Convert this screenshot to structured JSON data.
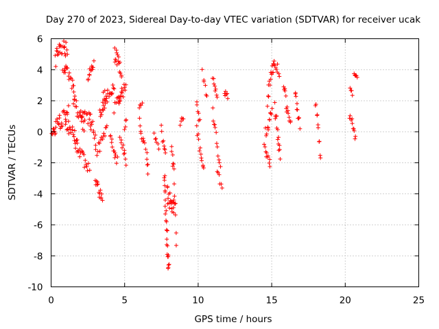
{
  "chart_data": {
    "type": "scatter",
    "title": "Day 270 of 2023, Sidereal Day-to-day VTEC variation (SDTVAR) for receiver ucak",
    "xlabel": "GPS time / hours",
    "ylabel": "SDTVAR / TECUs",
    "xlim": [
      0,
      25
    ],
    "ylim": [
      -10,
      6
    ],
    "xticks": [
      0,
      5,
      10,
      15,
      20,
      25
    ],
    "yticks": [
      -10,
      -8,
      -6,
      -4,
      -2,
      0,
      2,
      4,
      6
    ],
    "grid": true,
    "marker": "+",
    "color": "#ff0000",
    "series": [
      {
        "name": "SDTVAR",
        "segments": [
          {
            "t0": 0.0,
            "t1": 0.3,
            "v0": 0.0,
            "v1": 0.0,
            "mid": 0.0,
            "amp": 0.3,
            "n": 10
          },
          {
            "t0": 0.3,
            "t1": 1.1,
            "v0": 4.6,
            "v1": 5.2,
            "mid": 5.5,
            "amp": 0.5,
            "n": 24
          },
          {
            "t0": 0.3,
            "t1": 1.2,
            "v0": 0.2,
            "v1": 1.2,
            "mid": 0.8,
            "amp": 0.5,
            "n": 22
          },
          {
            "t0": 0.8,
            "t1": 1.6,
            "v0": 4.2,
            "v1": 2.4,
            "mid": 3.6,
            "amp": 0.4,
            "n": 20
          },
          {
            "t0": 1.0,
            "t1": 1.8,
            "v0": 0.5,
            "v1": -0.6,
            "mid": 0.0,
            "amp": 0.4,
            "n": 18
          },
          {
            "t0": 1.5,
            "t1": 2.3,
            "v0": 2.0,
            "v1": 0.3,
            "mid": 1.2,
            "amp": 0.5,
            "n": 18
          },
          {
            "t0": 1.6,
            "t1": 2.6,
            "v0": -0.8,
            "v1": -2.5,
            "mid": -1.6,
            "amp": 0.4,
            "n": 20
          },
          {
            "t0": 2.0,
            "t1": 2.7,
            "v0": 0.8,
            "v1": 0.4,
            "mid": 1.0,
            "amp": 0.3,
            "n": 12
          },
          {
            "t0": 2.5,
            "t1": 2.9,
            "v0": 3.6,
            "v1": 4.4,
            "mid": 4.0,
            "amp": 0.3,
            "n": 12
          },
          {
            "t0": 2.6,
            "t1": 3.0,
            "v0": 1.2,
            "v1": -0.4,
            "mid": 0.6,
            "amp": 0.3,
            "n": 10
          },
          {
            "t0": 3.0,
            "t1": 3.5,
            "v0": -3.0,
            "v1": -4.2,
            "mid": -3.8,
            "amp": 0.3,
            "n": 14
          },
          {
            "t0": 3.3,
            "t1": 3.8,
            "v0": 1.2,
            "v1": 2.0,
            "mid": 1.6,
            "amp": 0.4,
            "n": 12
          },
          {
            "t0": 3.5,
            "t1": 4.3,
            "v0": 2.2,
            "v1": 3.0,
            "mid": 2.6,
            "amp": 0.4,
            "n": 18
          },
          {
            "t0": 3.0,
            "t1": 3.8,
            "v0": -1.2,
            "v1": 0.4,
            "mid": -0.8,
            "amp": 0.4,
            "n": 16
          },
          {
            "t0": 4.0,
            "t1": 4.5,
            "v0": -0.2,
            "v1": -2.0,
            "mid": -1.2,
            "amp": 0.4,
            "n": 12
          },
          {
            "t0": 4.3,
            "t1": 4.8,
            "v0": 5.0,
            "v1": 3.8,
            "mid": 4.6,
            "amp": 0.5,
            "n": 16
          },
          {
            "t0": 4.3,
            "t1": 4.8,
            "v0": 1.4,
            "v1": 2.4,
            "mid": 2.0,
            "amp": 0.4,
            "n": 10
          },
          {
            "t0": 4.6,
            "t1": 5.1,
            "v0": 2.0,
            "v1": 3.0,
            "mid": 2.5,
            "amp": 0.4,
            "n": 12
          },
          {
            "t0": 4.7,
            "t1": 5.1,
            "v0": 0.0,
            "v1": -2.2,
            "mid": -1.0,
            "amp": 0.4,
            "n": 10
          },
          {
            "t0": 5.0,
            "t1": 5.1,
            "v0": 0.2,
            "v1": 0.8,
            "mid": 0.5,
            "amp": 0.2,
            "n": 4
          },
          {
            "t0": 6.0,
            "t1": 6.2,
            "v0": 1.6,
            "v1": 1.8,
            "mid": 1.7,
            "amp": 0.1,
            "n": 4
          },
          {
            "t0": 6.0,
            "t1": 6.4,
            "v0": 0.6,
            "v1": -1.0,
            "mid": -0.4,
            "amp": 0.3,
            "n": 10
          },
          {
            "t0": 6.5,
            "t1": 6.6,
            "v0": -1.4,
            "v1": -2.6,
            "mid": -2.0,
            "amp": 0.2,
            "n": 5
          },
          {
            "t0": 7.0,
            "t1": 7.3,
            "v0": -0.2,
            "v1": -1.0,
            "mid": -0.6,
            "amp": 0.2,
            "n": 6
          },
          {
            "t0": 7.5,
            "t1": 7.8,
            "v0": 0.3,
            "v1": -1.4,
            "mid": -0.8,
            "amp": 0.3,
            "n": 8
          },
          {
            "t0": 7.7,
            "t1": 8.0,
            "v0": -2.2,
            "v1": -8.8,
            "mid": -6.5,
            "amp": 0.8,
            "n": 26
          },
          {
            "t0": 7.9,
            "t1": 8.4,
            "v0": -4.0,
            "v1": -5.0,
            "mid": -4.5,
            "amp": 0.6,
            "n": 20
          },
          {
            "t0": 8.2,
            "t1": 8.5,
            "v0": -1.0,
            "v1": -7.0,
            "mid": -3.0,
            "amp": 0.5,
            "n": 14
          },
          {
            "t0": 8.8,
            "t1": 9.0,
            "v0": 0.6,
            "v1": 1.0,
            "mid": 0.8,
            "amp": 0.2,
            "n": 5
          },
          {
            "t0": 9.9,
            "t1": 10.1,
            "v0": 1.8,
            "v1": 0.6,
            "mid": 1.2,
            "amp": 0.2,
            "n": 6
          },
          {
            "t0": 9.9,
            "t1": 10.4,
            "v0": 0.0,
            "v1": -2.4,
            "mid": -1.2,
            "amp": 0.4,
            "n": 12
          },
          {
            "t0": 10.3,
            "t1": 10.6,
            "v0": 4.0,
            "v1": 2.2,
            "mid": 3.0,
            "amp": 0.3,
            "n": 6
          },
          {
            "t0": 11.0,
            "t1": 11.3,
            "v0": 3.6,
            "v1": 2.4,
            "mid": 3.0,
            "amp": 0.3,
            "n": 8
          },
          {
            "t0": 11.0,
            "t1": 11.5,
            "v0": 1.2,
            "v1": -2.0,
            "mid": -0.5,
            "amp": 0.4,
            "n": 12
          },
          {
            "t0": 11.3,
            "t1": 11.6,
            "v0": -2.4,
            "v1": -3.8,
            "mid": -3.0,
            "amp": 0.3,
            "n": 6
          },
          {
            "t0": 11.8,
            "t1": 12.0,
            "v0": 2.6,
            "v1": 2.2,
            "mid": 2.4,
            "amp": 0.2,
            "n": 6
          },
          {
            "t0": 14.5,
            "t1": 14.9,
            "v0": -1.0,
            "v1": -2.2,
            "mid": -1.6,
            "amp": 0.3,
            "n": 10
          },
          {
            "t0": 14.6,
            "t1": 15.0,
            "v0": 0.0,
            "v1": 1.2,
            "mid": 0.6,
            "amp": 0.4,
            "n": 12
          },
          {
            "t0": 14.7,
            "t1": 15.1,
            "v0": 2.0,
            "v1": 4.0,
            "mid": 3.2,
            "amp": 0.4,
            "n": 12
          },
          {
            "t0": 15.1,
            "t1": 15.5,
            "v0": 4.6,
            "v1": 3.8,
            "mid": 4.2,
            "amp": 0.3,
            "n": 10
          },
          {
            "t0": 15.2,
            "t1": 15.6,
            "v0": 1.8,
            "v1": -1.6,
            "mid": 0.0,
            "amp": 0.5,
            "n": 14
          },
          {
            "t0": 15.8,
            "t1": 16.3,
            "v0": 2.8,
            "v1": 0.2,
            "mid": 1.4,
            "amp": 0.5,
            "n": 14
          },
          {
            "t0": 16.6,
            "t1": 16.9,
            "v0": 2.6,
            "v1": 0.4,
            "mid": 1.4,
            "amp": 0.4,
            "n": 10
          },
          {
            "t0": 18.0,
            "t1": 18.3,
            "v0": 2.0,
            "v1": -1.6,
            "mid": 0.2,
            "amp": 0.4,
            "n": 10
          },
          {
            "t0": 20.3,
            "t1": 20.5,
            "v0": 2.8,
            "v1": 2.4,
            "mid": 2.6,
            "amp": 0.2,
            "n": 4
          },
          {
            "t0": 20.3,
            "t1": 20.7,
            "v0": 1.0,
            "v1": -0.4,
            "mid": 0.4,
            "amp": 0.3,
            "n": 10
          },
          {
            "t0": 20.6,
            "t1": 20.8,
            "v0": 3.8,
            "v1": 3.5,
            "mid": 3.6,
            "amp": 0.1,
            "n": 6
          }
        ]
      }
    ]
  }
}
